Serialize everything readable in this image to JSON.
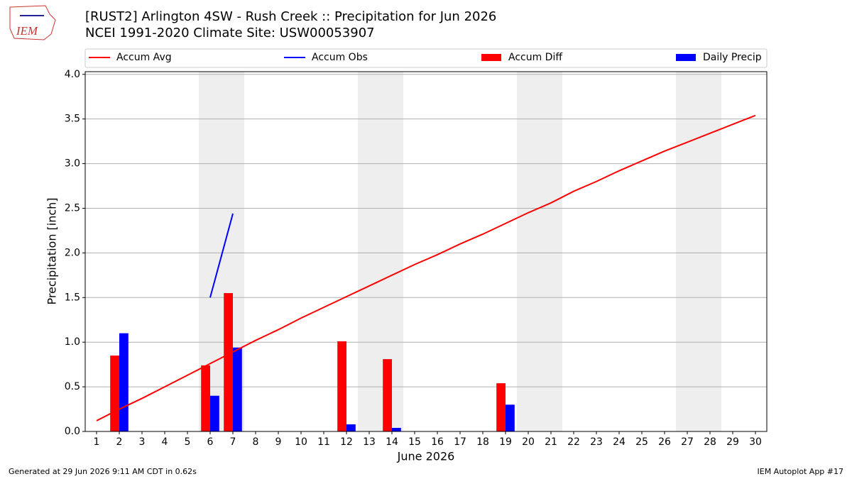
{
  "chart_data": {
    "type": "bar_line",
    "title": "[RUST2] Arlington 4SW - Rush Creek :: Precipitation for Jun 2026",
    "subtitle": "NCEI 1991-2020 Climate Site: USW00053907",
    "logo_text": "IEM",
    "xlabel": "June 2026",
    "ylabel": "Precipitation [inch]",
    "footer_left": "Generated at 29 Jun 2026 9:11 AM CDT in 0.62s",
    "footer_right": "IEM Autoplot App #17",
    "x": [
      1,
      2,
      3,
      4,
      5,
      6,
      7,
      8,
      9,
      10,
      11,
      12,
      13,
      14,
      15,
      16,
      17,
      18,
      19,
      20,
      21,
      22,
      23,
      24,
      25,
      26,
      27,
      28,
      29,
      30
    ],
    "xlim": [
      0.5,
      30.5
    ],
    "xticks": [
      1,
      2,
      3,
      4,
      5,
      6,
      7,
      8,
      9,
      10,
      11,
      12,
      13,
      14,
      15,
      16,
      17,
      18,
      19,
      20,
      21,
      22,
      23,
      24,
      25,
      26,
      27,
      28,
      29,
      30
    ],
    "ylim": [
      0,
      4.03
    ],
    "yticks": [
      {
        "value": 0,
        "label": "0.0"
      },
      0.5,
      {
        "value": 1,
        "label": "1.0"
      },
      1.5,
      {
        "value": 2,
        "label": "2.0"
      },
      2.5,
      {
        "value": 3,
        "label": "3.0"
      },
      3.5,
      {
        "value": 4,
        "label": "4.0"
      }
    ],
    "grid": true,
    "shaded_spans": [
      [
        5.5,
        7.5
      ],
      [
        12.5,
        14.5
      ],
      [
        19.5,
        21.5
      ],
      [
        26.5,
        28.5
      ]
    ],
    "series": [
      {
        "name": "Accum Avg",
        "kind": "line",
        "color": "#ff0000",
        "values": [
          0.12,
          0.25,
          0.37,
          0.5,
          0.63,
          0.76,
          0.89,
          1.02,
          1.14,
          1.27,
          1.39,
          1.51,
          1.63,
          1.75,
          1.87,
          1.98,
          2.1,
          2.21,
          2.33,
          2.45,
          2.56,
          2.69,
          2.8,
          2.92,
          3.03,
          3.14,
          3.24,
          3.34,
          3.44,
          3.54
        ]
      },
      {
        "name": "Accum Obs",
        "kind": "line",
        "color": "#0000ff",
        "values": [
          null,
          null,
          null,
          null,
          null,
          1.5,
          2.44,
          null,
          null,
          null,
          null,
          null,
          null,
          null,
          null,
          null,
          null,
          null,
          null,
          null,
          null,
          null,
          null,
          null,
          null,
          null,
          null,
          null,
          null,
          null
        ]
      },
      {
        "name": "Accum Diff",
        "kind": "bar",
        "color": "#ff0000",
        "values": [
          null,
          0.85,
          null,
          null,
          null,
          0.74,
          1.55,
          null,
          null,
          null,
          null,
          1.01,
          null,
          0.81,
          null,
          null,
          null,
          null,
          0.54,
          null,
          null,
          null,
          null,
          null,
          null,
          null,
          null,
          null,
          null,
          null
        ]
      },
      {
        "name": "Daily Precip",
        "kind": "bar",
        "color": "#0000ff",
        "values": [
          0,
          1.1,
          0,
          0,
          0,
          0.4,
          0.94,
          0,
          0,
          0,
          0,
          0.08,
          0,
          0.04,
          0,
          0,
          0,
          0,
          0.3,
          0,
          0,
          0,
          0,
          0,
          0,
          0,
          0,
          0,
          0,
          0
        ]
      }
    ]
  }
}
